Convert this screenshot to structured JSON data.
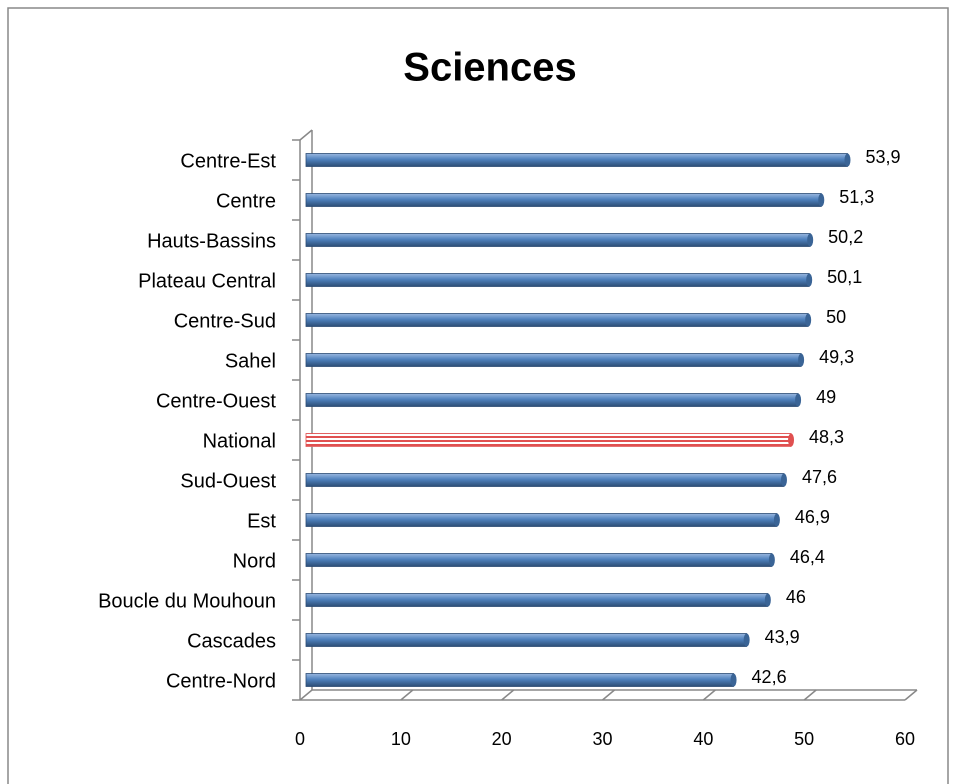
{
  "chart_data": {
    "type": "bar",
    "orientation": "horizontal",
    "title": "Sciences",
    "categories": [
      "Centre-Est",
      "Centre",
      "Hauts-Bassins",
      "Plateau Central",
      "Centre-Sud",
      "Sahel",
      "Centre-Ouest",
      "National",
      "Sud-Ouest",
      "Est",
      "Nord",
      "Boucle du Mouhoun",
      "Cascades",
      "Centre-Nord"
    ],
    "values": [
      53.9,
      51.3,
      50.2,
      50.1,
      50,
      49.3,
      49,
      48.3,
      47.6,
      46.9,
      46.4,
      46,
      43.9,
      42.6
    ],
    "value_labels": [
      "53,9",
      "51,3",
      "50,2",
      "50,1",
      "50",
      "49,3",
      "49",
      "48,3",
      "47,6",
      "46,9",
      "46,4",
      "46",
      "43,9",
      "42,6"
    ],
    "colors": [
      "#4f81bd",
      "#4f81bd",
      "#4f81bd",
      "#4f81bd",
      "#4f81bd",
      "#4f81bd",
      "#4f81bd",
      "#e05050",
      "#4f81bd",
      "#4f81bd",
      "#4f81bd",
      "#4f81bd",
      "#4f81bd",
      "#4f81bd"
    ],
    "xlim": [
      0,
      60
    ],
    "xticks": [
      0,
      10,
      20,
      30,
      40,
      50,
      60
    ],
    "grid": false
  }
}
